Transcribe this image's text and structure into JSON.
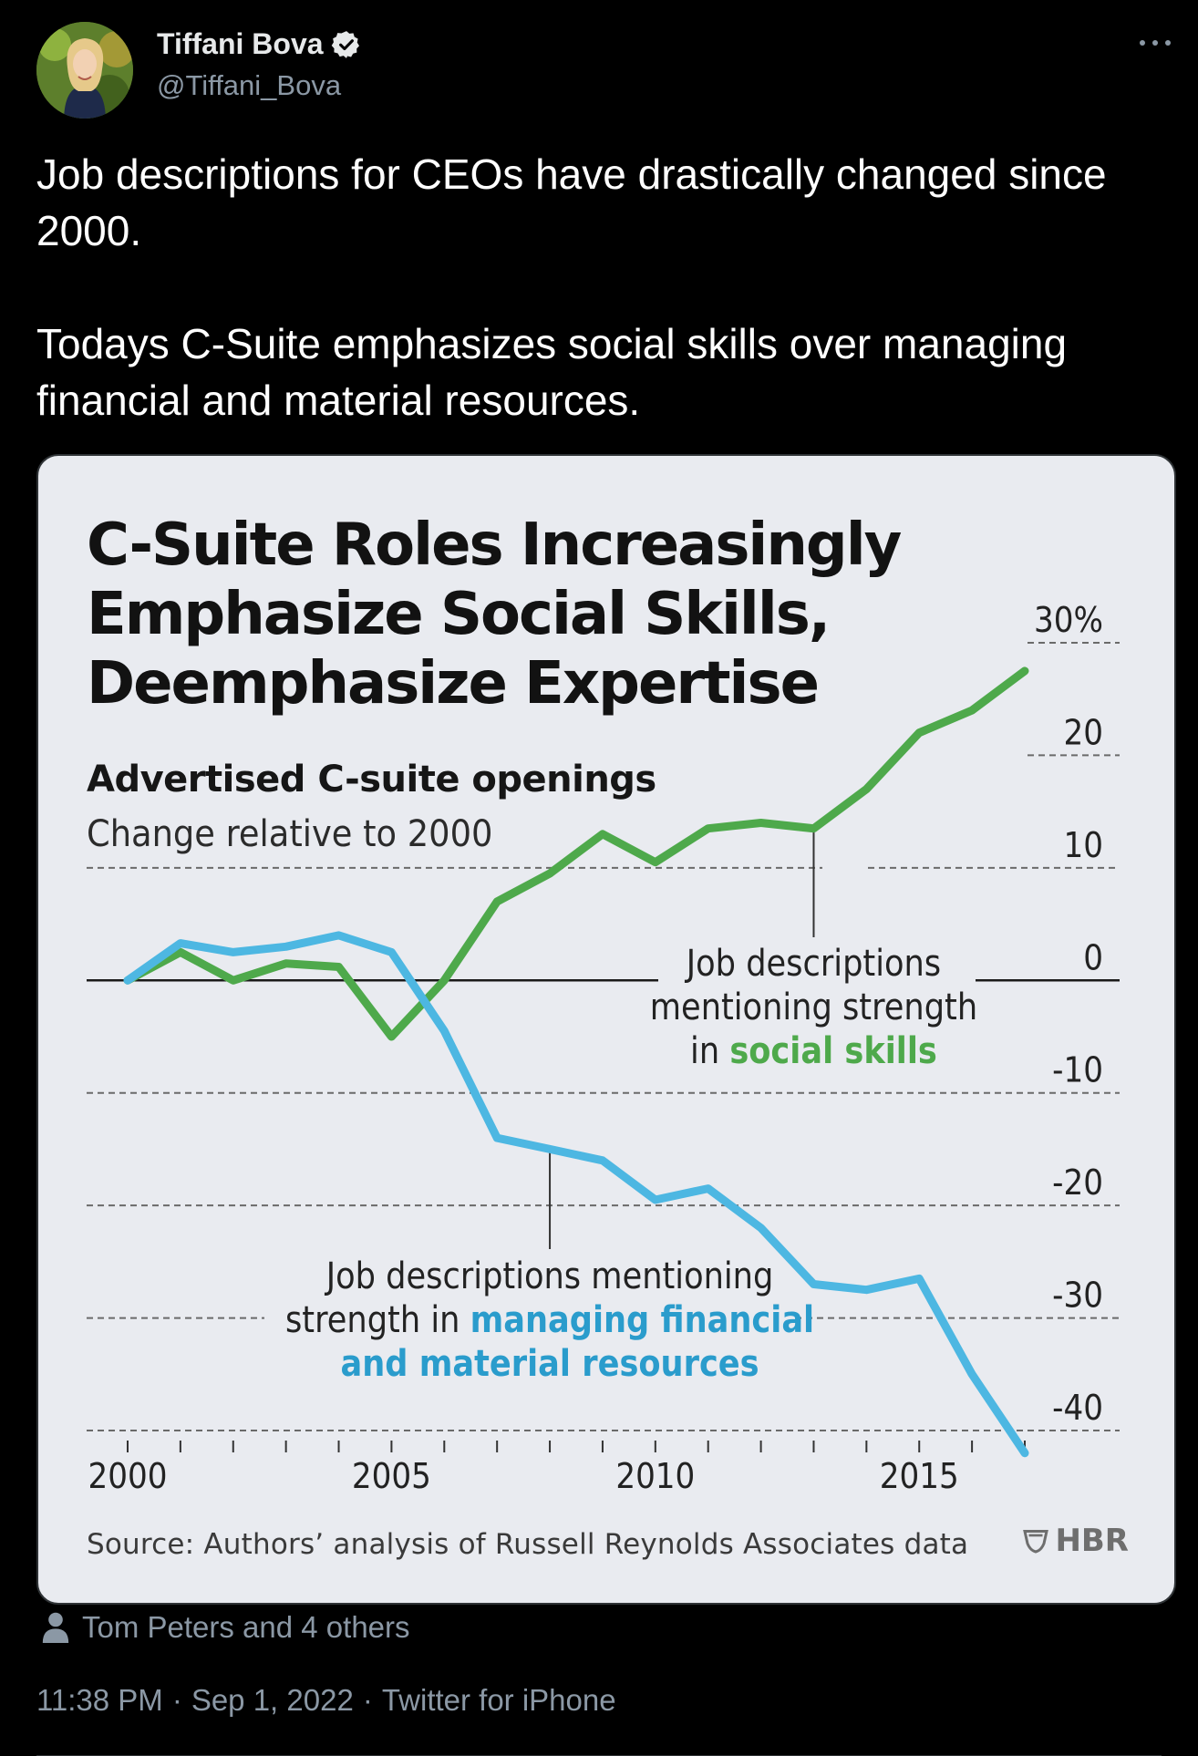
{
  "author": {
    "display_name": "Tiffani Bova",
    "handle": "@Tiffani_Bova",
    "verified": true
  },
  "tweet": {
    "paragraphs": [
      "Job descriptions for CEOs have drastically changed since 2000.",
      "Todays C-Suite emphasizes social skills over managing financial and material resources."
    ]
  },
  "media": {
    "brand": "HBR",
    "source": "Source: Authors’ analysis of Russell Reynolds Associates data"
  },
  "chart_data": {
    "type": "line",
    "title": "C-Suite Roles Increasingly Emphasize Social Skills, Deemphasize Expertise",
    "subtitle": "Advertised C-suite openings",
    "note": "Change relative to 2000",
    "x": [
      2000,
      2001,
      2002,
      2003,
      2004,
      2005,
      2006,
      2007,
      2008,
      2009,
      2010,
      2011,
      2012,
      2013,
      2014,
      2015,
      2016,
      2017
    ],
    "xticks": [
      2000,
      2005,
      2010,
      2015
    ],
    "xlim": [
      2000,
      2017
    ],
    "ylim": [
      -40,
      30
    ],
    "yticks": [
      30,
      20,
      10,
      0,
      -10,
      -20,
      -30,
      -40
    ],
    "ytick_labels": [
      "30%",
      "20",
      "10",
      "0",
      "-10",
      "-20",
      "-30",
      "-40"
    ],
    "grid": true,
    "series": [
      {
        "name": "social skills",
        "color": "#4ea94b",
        "label_lines": [
          "Job descriptions",
          "mentioning strength",
          "in "
        ],
        "label_highlight": "social skills",
        "values": [
          0,
          2.5,
          0,
          1.5,
          1.2,
          -5,
          0,
          7,
          9.5,
          13,
          10.5,
          13.5,
          14,
          13.5,
          17,
          22,
          24,
          27.5
        ]
      },
      {
        "name": "managing financial and material resources",
        "color": "#4db7e2",
        "label_lines": [
          "Job descriptions mentioning",
          "strength in "
        ],
        "label_highlight_lines": [
          "managing financial",
          "and material resources"
        ],
        "values": [
          0,
          3.3,
          2.5,
          3,
          4,
          2.5,
          -4.5,
          -14,
          -15,
          -16,
          -19.5,
          -18.5,
          -22,
          -27,
          -27.5,
          -26.5,
          -35,
          -42
        ]
      }
    ]
  },
  "footer": {
    "likers": "Tom Peters and 4 others",
    "time": "11:38 PM",
    "date": "Sep 1, 2022",
    "client": "Twitter for iPhone",
    "separator": "·"
  }
}
